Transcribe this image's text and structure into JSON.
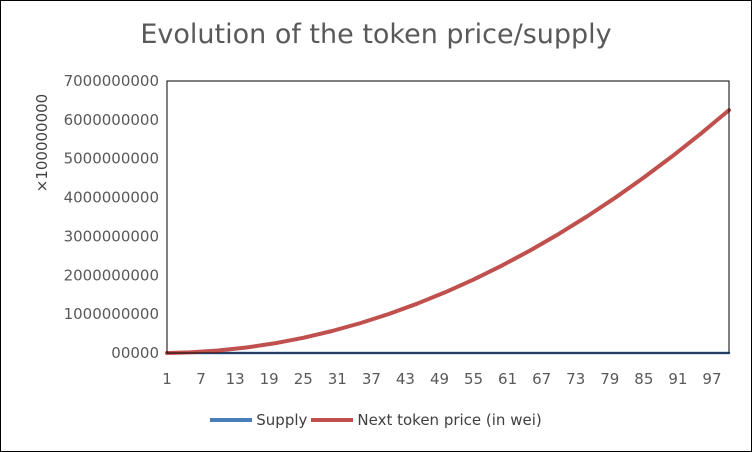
{
  "chart_data": {
    "type": "line",
    "title": "Evolution of the token price/supply",
    "y_multiplier_label": "×100000000",
    "xlabel": "",
    "ylabel": "",
    "x_tick_labels": [
      "1",
      "7",
      "13",
      "19",
      "25",
      "31",
      "37",
      "43",
      "49",
      "55",
      "61",
      "67",
      "73",
      "79",
      "85",
      "91",
      "97"
    ],
    "y_tick_labels": [
      "00000",
      "1000000000",
      "2000000000",
      "3000000000",
      "4000000000",
      "5000000000",
      "6000000000",
      "7000000000"
    ],
    "ylim": [
      0,
      7000000000
    ],
    "x": [
      1,
      5,
      10,
      15,
      20,
      25,
      30,
      35,
      40,
      45,
      50,
      55,
      60,
      65,
      70,
      75,
      80,
      85,
      90,
      95,
      100
    ],
    "series": [
      {
        "name": "Supply",
        "color": "#4a7ebb",
        "values": [
          0,
          0,
          0,
          0,
          0,
          0,
          0,
          0,
          0,
          0,
          0,
          0,
          0,
          0,
          0,
          0,
          0,
          0,
          0,
          0,
          0
        ]
      },
      {
        "name": "Next token price (in wei)",
        "color": "#c0504d",
        "values": [
          0,
          15000000,
          63000000,
          141000000,
          250000000,
          391000000,
          563000000,
          766000000,
          1000000000,
          1266000000,
          1563000000,
          1891000000,
          2250000000,
          2641000000,
          3063000000,
          3516000000,
          4000000000,
          4516000000,
          5063000000,
          5641000000,
          6250000000
        ]
      }
    ],
    "grid": false,
    "legend_position": "bottom"
  }
}
